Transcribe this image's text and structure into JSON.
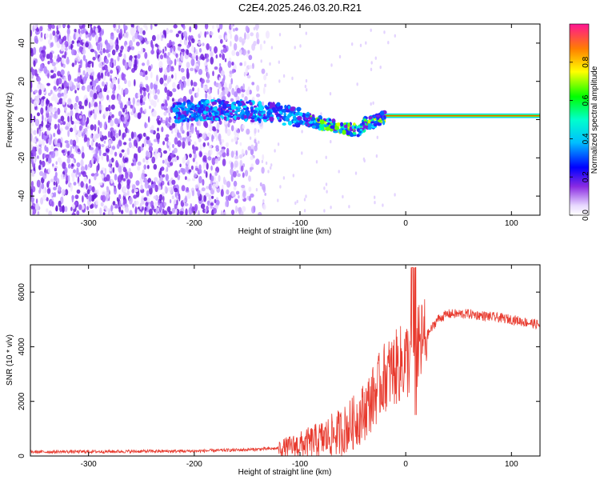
{
  "title": "C2E4.2025.246.03.20.R21",
  "chart_data": [
    {
      "type": "heatmap",
      "xlabel": "Height of straight line (km)",
      "ylabel": "Frequency (Hz)",
      "xlim": [
        -355,
        127
      ],
      "ylim": [
        -50,
        50
      ],
      "x_ticks": [
        -300,
        -200,
        -100,
        0,
        100
      ],
      "y_ticks": [
        -40,
        -20,
        0,
        20,
        40
      ],
      "colorbar": {
        "label": "Normalized spectral amplitude",
        "range": [
          0,
          1
        ],
        "ticks": [
          "0.0",
          "0.2",
          "0.4",
          "0.6",
          "0.8"
        ],
        "tick_values": [
          0,
          0.2,
          0.4,
          0.6,
          0.8
        ]
      },
      "ridge": [
        [
          -215,
          4
        ],
        [
          -200,
          5
        ],
        [
          -180,
          5
        ],
        [
          -160,
          5
        ],
        [
          -140,
          4
        ],
        [
          -120,
          3
        ],
        [
          -100,
          1
        ],
        [
          -80,
          -2
        ],
        [
          -60,
          -4
        ],
        [
          -45,
          -6
        ],
        [
          -38,
          -2
        ],
        [
          -30,
          -1
        ],
        [
          -20,
          1
        ],
        [
          -10,
          1
        ],
        [
          0,
          2
        ],
        [
          50,
          2
        ],
        [
          127,
          2
        ]
      ],
      "noise_edge_x": -150
    },
    {
      "type": "line",
      "xlabel": "Height of straight line (km)",
      "ylabel": "SNR (10 * v/v)",
      "xlim": [
        -355,
        127
      ],
      "ylim": [
        0,
        7000
      ],
      "x_ticks": [
        -300,
        -200,
        -100,
        0,
        100
      ],
      "y_ticks": [
        0,
        2000,
        4000,
        6000
      ],
      "color": "#e83a2e",
      "envelope": [
        [
          -355,
          150
        ],
        [
          -300,
          160
        ],
        [
          -250,
          170
        ],
        [
          -200,
          180
        ],
        [
          -150,
          230
        ],
        [
          -120,
          280
        ],
        [
          -100,
          400
        ],
        [
          -80,
          600
        ],
        [
          -60,
          900
        ],
        [
          -50,
          1200
        ],
        [
          -40,
          1600
        ],
        [
          -30,
          2200
        ],
        [
          -20,
          2900
        ],
        [
          -10,
          3200
        ],
        [
          0,
          3500
        ],
        [
          10,
          3800
        ],
        [
          20,
          4400
        ],
        [
          30,
          5000
        ],
        [
          40,
          5200
        ],
        [
          60,
          5200
        ],
        [
          80,
          5100
        ],
        [
          100,
          5000
        ],
        [
          127,
          4800
        ]
      ]
    }
  ]
}
